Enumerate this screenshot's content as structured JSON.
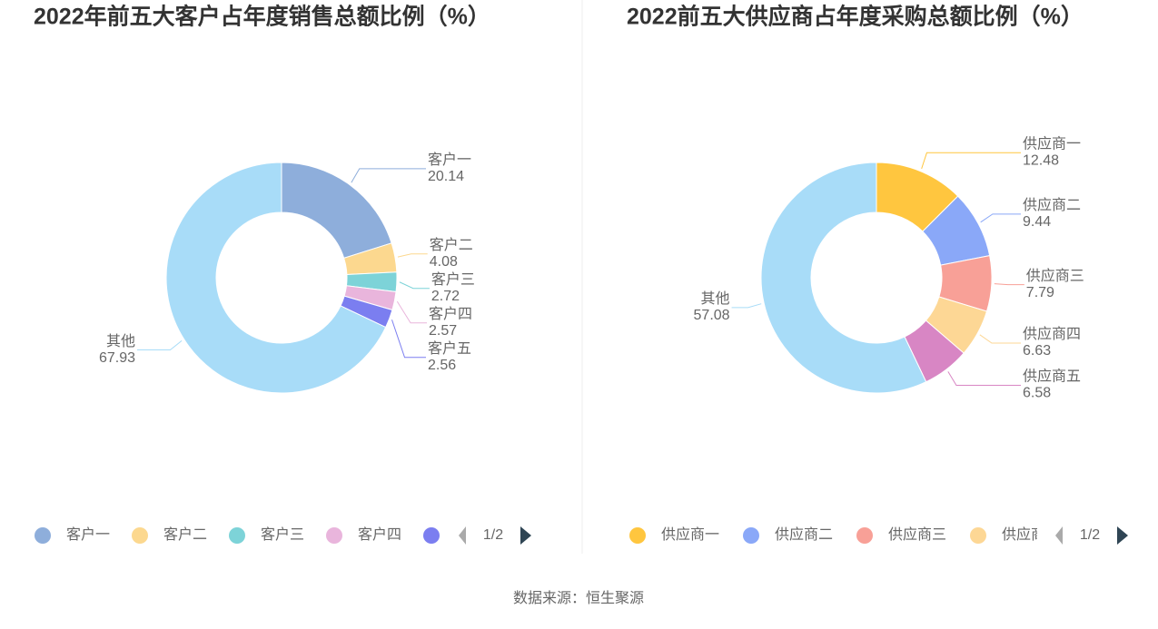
{
  "chart_data": [
    {
      "type": "pie",
      "title": "2022年前五大客户占年度销售总额比例（%）",
      "categories": [
        "客户一",
        "客户二",
        "客户三",
        "客户四",
        "客户五",
        "其他"
      ],
      "values": [
        20.14,
        4.08,
        2.72,
        2.57,
        2.56,
        67.93
      ],
      "colors": [
        "#8eaedb",
        "#fcd88f",
        "#7dd3d8",
        "#e9b5dc",
        "#7b7ef0",
        "#a8dcf8"
      ],
      "legend_page": "1/2"
    },
    {
      "type": "pie",
      "title": "2022前五大供应商占年度采购总额比例（%）",
      "categories": [
        "供应商一",
        "供应商二",
        "供应商三",
        "供应商四",
        "供应商五",
        "其他"
      ],
      "values": [
        12.48,
        9.44,
        7.79,
        6.63,
        6.58,
        57.08
      ],
      "colors": [
        "#ffc63f",
        "#8aa8f8",
        "#f8a097",
        "#fdd795",
        "#d886c4",
        "#a8dcf8"
      ],
      "legend_page": "1/2"
    }
  ],
  "source": "数据来源：恒生聚源"
}
